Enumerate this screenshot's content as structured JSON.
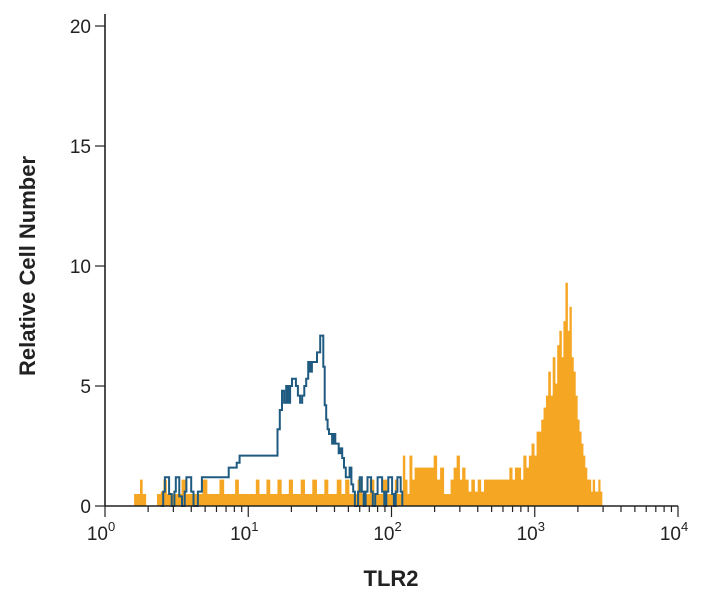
{
  "chart_data": {
    "type": "histogram",
    "xlabel": "TLR2",
    "ylabel": "Relative Cell Number",
    "xscale": "log",
    "xlim": [
      1,
      10000
    ],
    "ylim": [
      0,
      20
    ],
    "x_ticks": [
      {
        "base": "10",
        "exp": "0",
        "value": 1
      },
      {
        "base": "10",
        "exp": "1",
        "value": 10
      },
      {
        "base": "10",
        "exp": "2",
        "value": 100
      },
      {
        "base": "10",
        "exp": "3",
        "value": 1000
      },
      {
        "base": "10",
        "exp": "4",
        "value": 10000
      }
    ],
    "y_ticks": [
      {
        "label": "0",
        "value": 0
      },
      {
        "label": "5",
        "value": 5
      },
      {
        "label": "10",
        "value": 10
      },
      {
        "label": "15",
        "value": 15
      },
      {
        "label": "20",
        "value": 20
      }
    ],
    "grid": false,
    "series": [
      {
        "role": "stained",
        "style": "filled",
        "color": "#f5a623",
        "points": [
          [
            1.62,
            0.5
          ],
          [
            1.72,
            0.5
          ],
          [
            1.79,
            1.1
          ],
          [
            1.85,
            0.5
          ],
          [
            2.4,
            0.5
          ],
          [
            2.5,
            0.6
          ],
          [
            2.62,
            1.1
          ],
          [
            2.75,
            0.5
          ],
          [
            2.9,
            0.5
          ],
          [
            3.1,
            0.5
          ],
          [
            3.3,
            0.5
          ],
          [
            3.55,
            1.1
          ],
          [
            3.75,
            0.5
          ],
          [
            4.0,
            0.5
          ],
          [
            4.3,
            0.5
          ],
          [
            4.6,
            0.5
          ],
          [
            5.0,
            1.1
          ],
          [
            5.3,
            0.5
          ],
          [
            5.7,
            0.5
          ],
          [
            6.1,
            0.5
          ],
          [
            6.5,
            1.1
          ],
          [
            7.0,
            0.5
          ],
          [
            7.4,
            0.5
          ],
          [
            7.9,
            0.5
          ],
          [
            8.3,
            1.1
          ],
          [
            8.8,
            0.5
          ],
          [
            9.5,
            0.5
          ],
          [
            10.3,
            0.5
          ],
          [
            11.0,
            0.5
          ],
          [
            11.6,
            1.1
          ],
          [
            12.2,
            0.5
          ],
          [
            13.0,
            0.5
          ],
          [
            13.8,
            1.1
          ],
          [
            14.5,
            0.5
          ],
          [
            15.5,
            0.5
          ],
          [
            16.5,
            1.1
          ],
          [
            17.5,
            0.5
          ],
          [
            18.6,
            0.5
          ],
          [
            19.8,
            1.1
          ],
          [
            21.0,
            0.5
          ],
          [
            22.5,
            0.5
          ],
          [
            24.0,
            1.1
          ],
          [
            25.5,
            0.5
          ],
          [
            27.0,
            0.5
          ],
          [
            29.0,
            1.1
          ],
          [
            31.0,
            0.5
          ],
          [
            33.0,
            0.5
          ],
          [
            35.0,
            1.1
          ],
          [
            37.0,
            0.5
          ],
          [
            40.0,
            0.5
          ],
          [
            43.0,
            1.1
          ],
          [
            46.0,
            0.5
          ],
          [
            49.0,
            1.1
          ],
          [
            52.0,
            0.5
          ],
          [
            56.0,
            0.5
          ],
          [
            60.0,
            1.1
          ],
          [
            64.0,
            0.5
          ],
          [
            68.0,
            0.5
          ],
          [
            73.0,
            1.1
          ],
          [
            78.0,
            0.5
          ],
          [
            84.0,
            0.5
          ],
          [
            90.0,
            1.1
          ],
          [
            96.0,
            0.5
          ],
          [
            103.0,
            0.5
          ],
          [
            108.0,
            1.1
          ],
          [
            112.0,
            0.5
          ],
          [
            118.0,
            0.5
          ],
          [
            122.0,
            2.1
          ],
          [
            126.0,
            1.1
          ],
          [
            131.0,
            0.5
          ],
          [
            136.0,
            2.1
          ],
          [
            142.0,
            1.1
          ],
          [
            148.0,
            1.6
          ],
          [
            155.0,
            1.6
          ],
          [
            163.0,
            1.6
          ],
          [
            172.0,
            1.6
          ],
          [
            182.0,
            1.6
          ],
          [
            192.0,
            1.6
          ],
          [
            202.0,
            2.1
          ],
          [
            212.0,
            1.1
          ],
          [
            225.0,
            1.6
          ],
          [
            238.0,
            0.5
          ],
          [
            252.0,
            0.5
          ],
          [
            265.0,
            1.1
          ],
          [
            278.0,
            1.6
          ],
          [
            292.0,
            2.1
          ],
          [
            305.0,
            1.1
          ],
          [
            318.0,
            1.6
          ],
          [
            335.0,
            1.1
          ],
          [
            352.0,
            0.6
          ],
          [
            370.0,
            1.1
          ],
          [
            390.0,
            0.6
          ],
          [
            410.0,
            1.1
          ],
          [
            430.0,
            0.6
          ],
          [
            455.0,
            1.1
          ],
          [
            480.0,
            1.1
          ],
          [
            505.0,
            1.1
          ],
          [
            530.0,
            1.1
          ],
          [
            560.0,
            1.1
          ],
          [
            590.0,
            1.1
          ],
          [
            620.0,
            1.1
          ],
          [
            650.0,
            1.1
          ],
          [
            680.0,
            1.6
          ],
          [
            710.0,
            1.1
          ],
          [
            745.0,
            1.6
          ],
          [
            780.0,
            1.6
          ],
          [
            815.0,
            1.1
          ],
          [
            850.0,
            2.1
          ],
          [
            890.0,
            1.6
          ],
          [
            930.0,
            2.1
          ],
          [
            970.0,
            2.6
          ],
          [
            1010.0,
            2.1
          ],
          [
            1050.0,
            3.1
          ],
          [
            1090.0,
            3.1
          ],
          [
            1130.0,
            3.6
          ],
          [
            1175.0,
            4.1
          ],
          [
            1220.0,
            4.6
          ],
          [
            1265.0,
            5.6
          ],
          [
            1310.0,
            4.6
          ],
          [
            1360.0,
            6.2
          ],
          [
            1410.0,
            5.1
          ],
          [
            1460.0,
            6.7
          ],
          [
            1510.0,
            7.3
          ],
          [
            1560.0,
            6.2
          ],
          [
            1610.0,
            7.7
          ],
          [
            1665.0,
            9.3
          ],
          [
            1720.0,
            7.3
          ],
          [
            1775.0,
            8.3
          ],
          [
            1830.0,
            6.2
          ],
          [
            1890.0,
            5.6
          ],
          [
            1950.0,
            4.6
          ],
          [
            2010.0,
            3.6
          ],
          [
            2075.0,
            3.1
          ],
          [
            2140.0,
            2.6
          ],
          [
            2205.0,
            2.1
          ],
          [
            2275.0,
            1.6
          ],
          [
            2350.0,
            1.1
          ],
          [
            2425.0,
            1.1
          ],
          [
            2500.0,
            0.6
          ],
          [
            2580.0,
            1.1
          ],
          [
            2660.0,
            0.6
          ],
          [
            2740.0,
            0.6
          ],
          [
            2820.0,
            1.1
          ],
          [
            2900.0,
            0.6
          ]
        ]
      },
      {
        "role": "isotype control",
        "style": "step-outline",
        "color": "#1f5a80",
        "points": [
          [
            2.45,
            0.0
          ],
          [
            2.55,
            0.6
          ],
          [
            2.62,
            1.2
          ],
          [
            2.72,
            1.2
          ],
          [
            2.8,
            0.5
          ],
          [
            2.92,
            0.0
          ],
          [
            3.05,
            0.6
          ],
          [
            3.12,
            1.2
          ],
          [
            3.2,
            1.2
          ],
          [
            3.3,
            0.4
          ],
          [
            3.45,
            0.0
          ],
          [
            3.6,
            0.6
          ],
          [
            3.7,
            1.2
          ],
          [
            3.85,
            1.2
          ],
          [
            4.0,
            0.6
          ],
          [
            4.15,
            0.0
          ],
          [
            4.45,
            0.6
          ],
          [
            4.75,
            1.2
          ],
          [
            5.1,
            1.2
          ],
          [
            5.5,
            1.2
          ],
          [
            5.9,
            1.2
          ],
          [
            6.3,
            1.2
          ],
          [
            6.8,
            1.2
          ],
          [
            7.3,
            1.6
          ],
          [
            7.8,
            1.6
          ],
          [
            8.3,
            1.8
          ],
          [
            8.7,
            2.1
          ],
          [
            9.2,
            2.1
          ],
          [
            9.9,
            2.1
          ],
          [
            10.6,
            2.1
          ],
          [
            11.3,
            2.1
          ],
          [
            12.0,
            2.1
          ],
          [
            12.8,
            2.1
          ],
          [
            13.6,
            2.1
          ],
          [
            14.4,
            2.1
          ],
          [
            15.3,
            2.1
          ],
          [
            16.0,
            3.2
          ],
          [
            16.6,
            4.0
          ],
          [
            17.2,
            4.8
          ],
          [
            17.8,
            4.3
          ],
          [
            18.4,
            5.0
          ],
          [
            19.0,
            4.3
          ],
          [
            19.6,
            5.0
          ],
          [
            20.2,
            5.3
          ],
          [
            20.8,
            5.3
          ],
          [
            21.5,
            5.0
          ],
          [
            22.2,
            4.6
          ],
          [
            23.0,
            4.3
          ],
          [
            23.8,
            4.6
          ],
          [
            24.6,
            5.0
          ],
          [
            25.4,
            5.3
          ],
          [
            26.2,
            6.0
          ],
          [
            27.0,
            5.6
          ],
          [
            27.8,
            6.0
          ],
          [
            28.6,
            6.0
          ],
          [
            29.4,
            6.0
          ],
          [
            30.2,
            6.4
          ],
          [
            31.0,
            6.4
          ],
          [
            31.8,
            7.1
          ],
          [
            32.6,
            7.1
          ],
          [
            33.4,
            5.8
          ],
          [
            34.2,
            4.2
          ],
          [
            35.0,
            3.6
          ],
          [
            35.8,
            3.2
          ],
          [
            36.6,
            3.0
          ],
          [
            37.5,
            3.0
          ],
          [
            38.5,
            2.6
          ],
          [
            39.5,
            3.0
          ],
          [
            40.5,
            2.6
          ],
          [
            41.6,
            2.6
          ],
          [
            42.8,
            2.2
          ],
          [
            44.0,
            2.4
          ],
          [
            45.3,
            2.0
          ],
          [
            46.6,
            1.6
          ],
          [
            48.0,
            1.2
          ],
          [
            49.5,
            1.2
          ],
          [
            51.0,
            1.6
          ],
          [
            52.5,
            0.9
          ],
          [
            54.0,
            0.6
          ],
          [
            55.5,
            0.0
          ],
          [
            57.0,
            0.0
          ],
          [
            58.5,
            0.6
          ],
          [
            60.0,
            1.2
          ],
          [
            62.0,
            0.6
          ],
          [
            64.0,
            0.0
          ],
          [
            66.0,
            0.6
          ],
          [
            68.0,
            1.2
          ],
          [
            70.0,
            1.2
          ],
          [
            72.0,
            0.6
          ],
          [
            74.0,
            0.0
          ],
          [
            77.0,
            0.5
          ],
          [
            80.0,
            1.2
          ],
          [
            83.0,
            1.2
          ],
          [
            86.0,
            0.6
          ],
          [
            89.0,
            0.0
          ],
          [
            92.0,
            0.6
          ],
          [
            95.0,
            1.2
          ],
          [
            98.0,
            1.2
          ],
          [
            101.0,
            0.5
          ],
          [
            104.0,
            0.0
          ],
          [
            107.0,
            0.6
          ],
          [
            110.0,
            1.2
          ],
          [
            113.0,
            1.2
          ],
          [
            116.0,
            0.6
          ],
          [
            119.0,
            0.0
          ]
        ]
      }
    ]
  }
}
